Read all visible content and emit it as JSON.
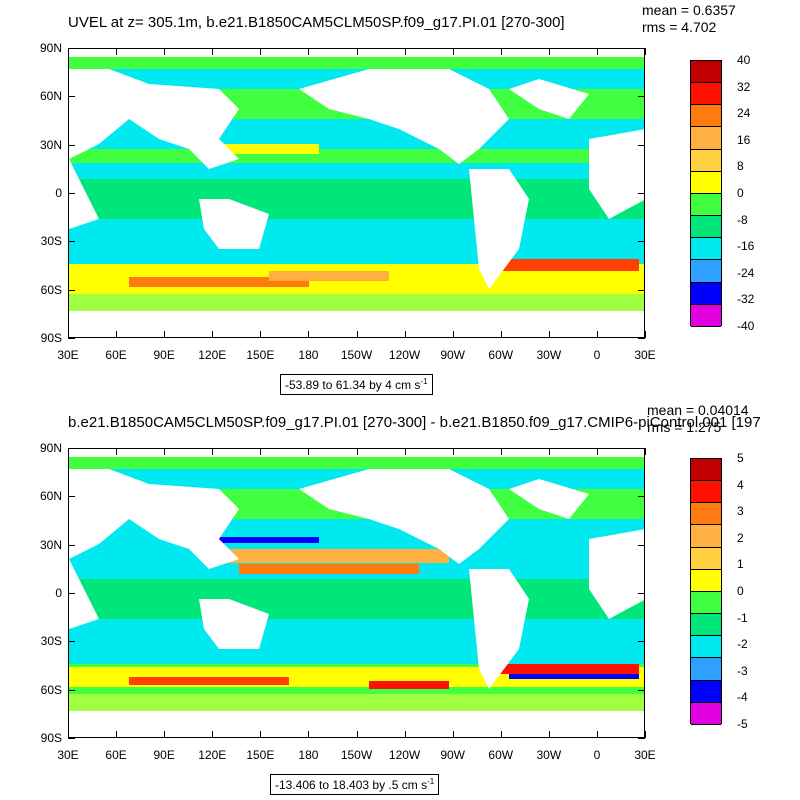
{
  "panels": [
    {
      "title": "UVEL at z= 305.1m, b.e21.B1850CAM5CLM50SP.f09_g17.PI.01 [270-300]",
      "mean": "mean = 0.6357",
      "rms": "rms = 4.702",
      "range_label": "-53.89 to 61.34 by 4 cm s",
      "range_unit_sup": "-1",
      "colorbar_labels": [
        "40",
        "32",
        "24",
        "16",
        "8",
        "0",
        "-8",
        "-16",
        "-24",
        "-32",
        "-40"
      ]
    },
    {
      "title": "b.e21.B1850CAM5CLM50SP.f09_g17.PI.01 [270-300] - b.e21.B1850.f09_g17.CMIP6-piControl.001 [197",
      "mean": "mean = 0.04014",
      "rms": "rms = 1.275",
      "range_label": "-13.406 to 18.403 by .5 cm s",
      "range_unit_sup": "-1",
      "colorbar_labels": [
        "5",
        "4",
        "3",
        "2",
        "1",
        "0",
        "-1",
        "-2",
        "-3",
        "-4",
        "-5"
      ]
    }
  ],
  "lat_labels": [
    "90N",
    "60N",
    "30N",
    "0",
    "30S",
    "60S",
    "90S"
  ],
  "lon_labels": [
    "30E",
    "60E",
    "90E",
    "120E",
    "150E",
    "180",
    "150W",
    "120W",
    "90W",
    "60W",
    "30W",
    "0",
    "30E"
  ],
  "colors": {
    "palette": [
      "#666666",
      "#d0d0d0",
      "#e000e0",
      "#8000c8",
      "#0000ff",
      "#1e78ff",
      "#30a0ff",
      "#40c8ff",
      "#00e8f0",
      "#00f0c8",
      "#00e67a",
      "#40ff40",
      "#a0ff40",
      "#ffff00",
      "#ffd040",
      "#ffb040",
      "#ff9a30",
      "#ff7a10",
      "#ff4000",
      "#ff1000",
      "#c00000"
    ],
    "land": "#ffffff"
  }
}
